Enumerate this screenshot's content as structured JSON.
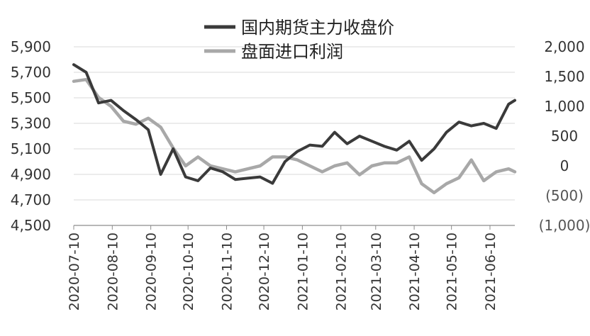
{
  "chart_data": {
    "type": "line",
    "title": "",
    "xlabel": "",
    "ylabel": "",
    "grid": true,
    "legend_position": "top-center",
    "x_tick_labels": [
      "2020-07-10",
      "2020-08-10",
      "2020-09-10",
      "2020-10-10",
      "2020-11-10",
      "2020-12-10",
      "2021-01-10",
      "2021-02-10",
      "2021-03-10",
      "2021-04-10",
      "2021-05-10",
      "2021-06-10"
    ],
    "x_range": [
      "2020-07-10",
      "2021-06-30"
    ],
    "y_left": {
      "range": [
        4500,
        5900
      ],
      "tick_values": [
        4500,
        4700,
        4900,
        5100,
        5300,
        5500,
        5700,
        5900
      ],
      "tick_labels": [
        "4,500",
        "4,700",
        "4,900",
        "5,100",
        "5,300",
        "5,500",
        "5,700",
        "5,900"
      ]
    },
    "y_right": {
      "range": [
        -1000,
        2000
      ],
      "tick_values": [
        -1000,
        -500,
        0,
        500,
        1000,
        1500,
        2000
      ],
      "tick_labels": [
        "(1,000)",
        "(500)",
        "0",
        "500",
        "1,000",
        "1,500",
        "2,000"
      ]
    },
    "series": [
      {
        "name": "国内期货主力收盘价",
        "axis": "left",
        "color": "#3a3a3a",
        "x": [
          "2020-07-10",
          "2020-07-20",
          "2020-07-30",
          "2020-08-09",
          "2020-08-19",
          "2020-08-29",
          "2020-09-08",
          "2020-09-18",
          "2020-09-28",
          "2020-10-08",
          "2020-10-18",
          "2020-10-28",
          "2020-11-07",
          "2020-11-17",
          "2020-11-27",
          "2020-12-07",
          "2020-12-17",
          "2020-12-27",
          "2021-01-06",
          "2021-01-16",
          "2021-01-26",
          "2021-02-05",
          "2021-02-15",
          "2021-02-25",
          "2021-03-07",
          "2021-03-17",
          "2021-03-27",
          "2021-04-06",
          "2021-04-16",
          "2021-04-26",
          "2021-05-06",
          "2021-05-16",
          "2021-05-26",
          "2021-06-05",
          "2021-06-15",
          "2021-06-25",
          "2021-06-30"
        ],
        "values": [
          5760,
          5700,
          5460,
          5480,
          5400,
          5330,
          5250,
          4900,
          5100,
          4880,
          4850,
          4950,
          4920,
          4860,
          4870,
          4880,
          4830,
          5000,
          5080,
          5130,
          5120,
          5230,
          5140,
          5200,
          5160,
          5120,
          5090,
          5160,
          5010,
          5100,
          5230,
          5310,
          5280,
          5300,
          5260,
          5450,
          5480
        ]
      },
      {
        "name": "盘面进口利润",
        "axis": "right",
        "color": "#a8a8a8",
        "x": [
          "2020-07-10",
          "2020-07-20",
          "2020-07-30",
          "2020-08-09",
          "2020-08-19",
          "2020-08-29",
          "2020-09-08",
          "2020-09-18",
          "2020-09-28",
          "2020-10-08",
          "2020-10-18",
          "2020-10-28",
          "2020-11-07",
          "2020-11-17",
          "2020-11-27",
          "2020-12-07",
          "2020-12-17",
          "2020-12-27",
          "2021-01-06",
          "2021-01-16",
          "2021-01-26",
          "2021-02-05",
          "2021-02-15",
          "2021-02-25",
          "2021-03-07",
          "2021-03-17",
          "2021-03-27",
          "2021-04-06",
          "2021-04-16",
          "2021-04-26",
          "2021-05-06",
          "2021-05-16",
          "2021-05-26",
          "2021-06-05",
          "2021-06-15",
          "2021-06-25",
          "2021-06-30"
        ],
        "values": [
          1420,
          1450,
          1150,
          1000,
          750,
          700,
          800,
          650,
          300,
          0,
          150,
          0,
          -50,
          -100,
          -50,
          0,
          150,
          150,
          100,
          0,
          -100,
          0,
          50,
          -150,
          0,
          50,
          50,
          150,
          -300,
          -450,
          -300,
          -200,
          100,
          -250,
          -100,
          -50,
          -100
        ]
      }
    ]
  }
}
